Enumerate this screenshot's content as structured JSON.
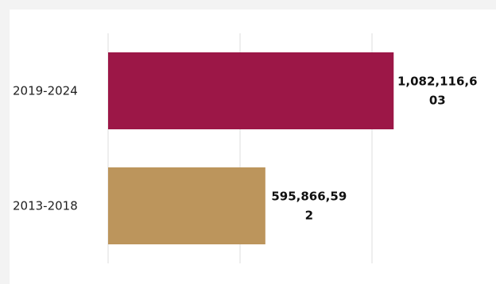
{
  "chart_data": {
    "type": "bar",
    "orientation": "horizontal",
    "categories": [
      "2019-2024",
      "2013-2018"
    ],
    "values": [
      1082116603,
      595866592
    ],
    "value_labels": [
      [
        "1,082,116,6",
        "03"
      ],
      [
        "595,866,59",
        "2"
      ]
    ],
    "colors": [
      "#9c1747",
      "#bc955c"
    ],
    "xlim": [
      0,
      1500000000
    ],
    "grid": true,
    "legend": "none"
  }
}
